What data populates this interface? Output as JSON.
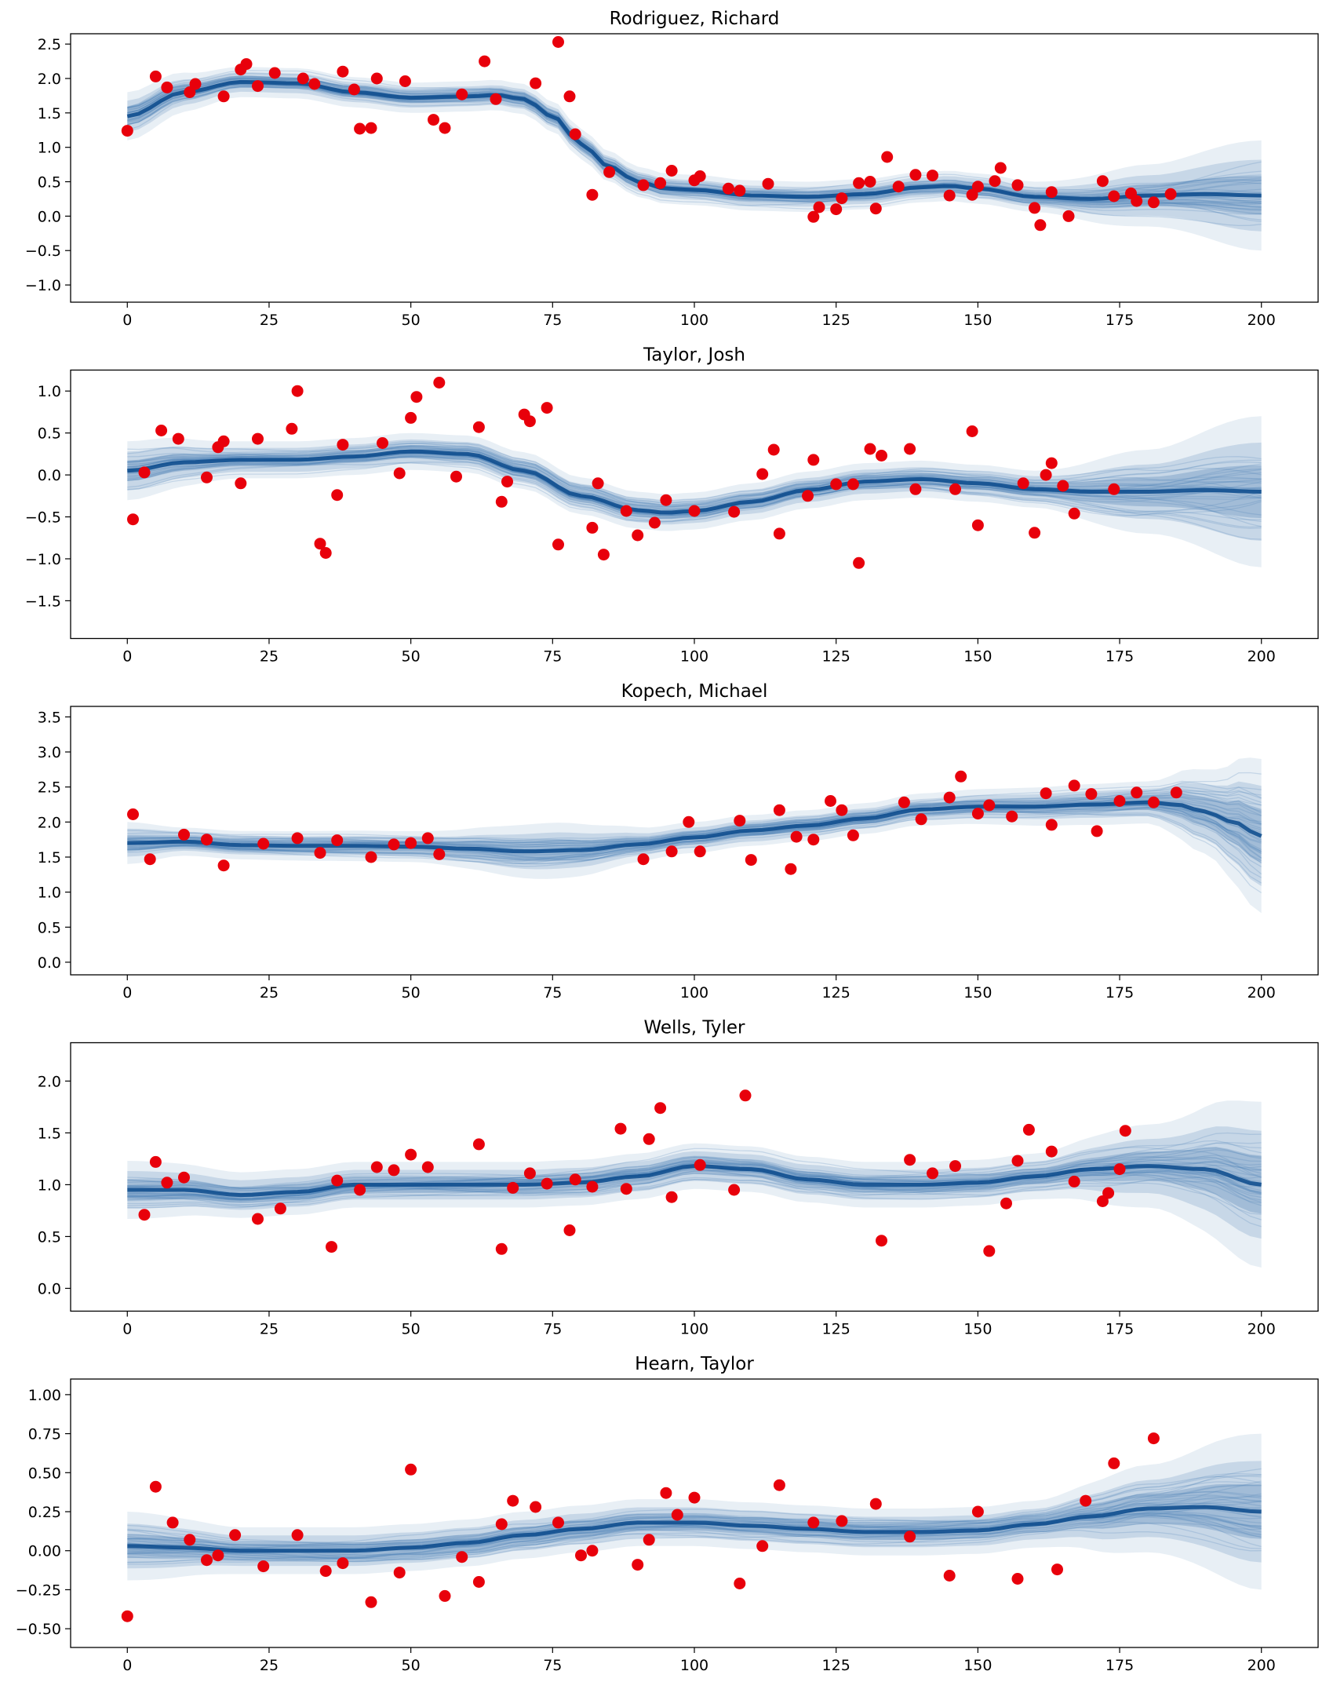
{
  "chart_data": [
    {
      "type": "scatter",
      "title": "Rodriguez, Richard",
      "xlabel": "",
      "ylabel": "",
      "xlim": [
        -10,
        210
      ],
      "ylim": [
        -1.25,
        2.65
      ],
      "xticks": [
        0,
        25,
        50,
        75,
        100,
        125,
        150,
        175,
        200
      ],
      "yticks": [
        -1.0,
        -0.5,
        0.0,
        0.5,
        1.0,
        1.5,
        2.0,
        2.5
      ],
      "ytick_decimals": 1,
      "grid": false,
      "point_color": "#e8000b",
      "band_color": "#1f5fa0",
      "points": {
        "x": [
          0,
          5,
          7,
          11,
          12,
          17,
          20,
          21,
          23,
          26,
          31,
          33,
          38,
          40,
          41,
          43,
          44,
          49,
          54,
          56,
          59,
          63,
          65,
          72,
          76,
          78,
          79,
          82,
          85,
          91,
          94,
          96,
          100,
          101,
          106,
          108,
          113,
          121,
          122,
          125,
          126,
          129,
          131,
          132,
          134,
          136,
          139,
          142,
          145,
          149,
          150,
          153,
          154,
          157,
          160,
          161,
          163,
          166,
          172,
          174,
          177,
          178,
          181,
          184
        ],
        "y": [
          1.24,
          2.03,
          1.87,
          1.8,
          1.92,
          1.74,
          2.13,
          2.21,
          1.89,
          2.08,
          2.0,
          1.92,
          2.1,
          1.84,
          1.27,
          1.28,
          2.0,
          1.96,
          1.4,
          1.28,
          1.77,
          2.25,
          1.7,
          1.93,
          2.53,
          1.74,
          1.19,
          0.31,
          0.64,
          0.45,
          0.48,
          0.66,
          0.52,
          0.58,
          0.4,
          0.37,
          0.47,
          -0.01,
          0.13,
          0.1,
          0.26,
          0.48,
          0.5,
          0.11,
          0.86,
          0.43,
          0.6,
          0.59,
          0.3,
          0.31,
          0.43,
          0.51,
          0.7,
          0.45,
          0.12,
          -0.13,
          0.35,
          0.0,
          0.51,
          0.29,
          0.33,
          0.22,
          0.2,
          0.32
        ]
      },
      "mean_curve": {
        "x": [
          0,
          10,
          20,
          30,
          40,
          50,
          60,
          65,
          70,
          75,
          80,
          85,
          90,
          95,
          100,
          110,
          120,
          130,
          140,
          145,
          150,
          160,
          170,
          180,
          190,
          200
        ],
        "y": [
          1.45,
          1.8,
          1.95,
          1.93,
          1.8,
          1.72,
          1.74,
          1.76,
          1.7,
          1.45,
          1.05,
          0.72,
          0.5,
          0.4,
          0.38,
          0.3,
          0.28,
          0.32,
          0.42,
          0.44,
          0.4,
          0.28,
          0.25,
          0.3,
          0.32,
          0.3
        ]
      },
      "band_halfwidth": {
        "x": [
          0,
          20,
          160,
          180,
          200
        ],
        "h": [
          0.35,
          0.22,
          0.22,
          0.45,
          0.8
        ]
      }
    },
    {
      "type": "scatter",
      "title": "Taylor, Josh",
      "xlabel": "",
      "ylabel": "",
      "xlim": [
        -10,
        210
      ],
      "ylim": [
        -1.95,
        1.25
      ],
      "xticks": [
        0,
        25,
        50,
        75,
        100,
        125,
        150,
        175,
        200
      ],
      "yticks": [
        -1.5,
        -1.0,
        -0.5,
        0.0,
        0.5,
        1.0
      ],
      "ytick_decimals": 1,
      "grid": false,
      "point_color": "#e8000b",
      "band_color": "#1f5fa0",
      "points": {
        "x": [
          1,
          3,
          6,
          9,
          14,
          16,
          17,
          20,
          23,
          29,
          30,
          34,
          35,
          37,
          38,
          45,
          48,
          50,
          51,
          55,
          58,
          62,
          66,
          67,
          70,
          71,
          74,
          76,
          83,
          84,
          82,
          88,
          90,
          93,
          95,
          100,
          107,
          112,
          114,
          115,
          120,
          121,
          125,
          128,
          129,
          131,
          133,
          138,
          139,
          146,
          149,
          150,
          158,
          160,
          162,
          163,
          165,
          167,
          174
        ],
        "y": [
          -0.53,
          0.03,
          0.53,
          0.43,
          -0.03,
          0.33,
          0.4,
          -0.1,
          0.43,
          0.55,
          1.0,
          -0.82,
          -0.93,
          -0.24,
          0.36,
          0.38,
          0.02,
          0.68,
          0.93,
          1.1,
          -0.02,
          0.57,
          -0.32,
          -0.08,
          0.72,
          0.64,
          0.8,
          -0.83,
          -0.1,
          -0.95,
          -0.63,
          -0.43,
          -0.72,
          -0.57,
          -0.3,
          -0.43,
          -0.44,
          0.01,
          0.3,
          -0.7,
          -0.25,
          0.18,
          -0.11,
          -0.11,
          -1.05,
          0.31,
          0.23,
          0.31,
          -0.17,
          -0.17,
          0.52,
          -0.6,
          -0.1,
          -0.69,
          0.0,
          0.14,
          -0.13,
          -0.46,
          -0.17
        ]
      },
      "mean_curve": {
        "x": [
          0,
          10,
          20,
          30,
          40,
          50,
          60,
          70,
          80,
          90,
          95,
          100,
          110,
          120,
          130,
          140,
          150,
          160,
          170,
          180,
          190,
          200
        ],
        "y": [
          0.05,
          0.15,
          0.18,
          0.18,
          0.22,
          0.28,
          0.25,
          0.05,
          -0.25,
          -0.42,
          -0.45,
          -0.43,
          -0.32,
          -0.18,
          -0.08,
          -0.05,
          -0.1,
          -0.17,
          -0.2,
          -0.2,
          -0.18,
          -0.2
        ]
      },
      "band_halfwidth": {
        "x": [
          0,
          20,
          160,
          180,
          200
        ],
        "h": [
          0.35,
          0.22,
          0.22,
          0.5,
          0.9
        ]
      }
    },
    {
      "type": "scatter",
      "title": "Kopech, Michael",
      "xlabel": "",
      "ylabel": "",
      "xlim": [
        -10,
        210
      ],
      "ylim": [
        -0.18,
        3.65
      ],
      "xticks": [
        0,
        25,
        50,
        75,
        100,
        125,
        150,
        175,
        200
      ],
      "yticks": [
        0.0,
        0.5,
        1.0,
        1.5,
        2.0,
        2.5,
        3.0,
        3.5
      ],
      "ytick_decimals": 1,
      "grid": false,
      "point_color": "#e8000b",
      "band_color": "#1f5fa0",
      "points": {
        "x": [
          1,
          4,
          10,
          14,
          17,
          24,
          30,
          34,
          37,
          43,
          47,
          50,
          53,
          55,
          91,
          96,
          99,
          101,
          108,
          110,
          115,
          117,
          118,
          121,
          124,
          126,
          128,
          137,
          140,
          145,
          147,
          150,
          152,
          156,
          162,
          163,
          167,
          170,
          171,
          175,
          178,
          181,
          185
        ],
        "y": [
          2.11,
          1.47,
          1.82,
          1.75,
          1.38,
          1.69,
          1.77,
          1.56,
          1.74,
          1.5,
          1.68,
          1.7,
          1.77,
          1.54,
          1.47,
          1.58,
          2.0,
          1.58,
          2.02,
          1.46,
          2.17,
          1.33,
          1.79,
          1.75,
          2.3,
          2.17,
          1.81,
          2.28,
          2.04,
          2.35,
          2.65,
          2.12,
          2.24,
          2.08,
          2.41,
          1.96,
          2.52,
          2.4,
          1.87,
          2.3,
          2.42,
          2.28,
          2.42
        ]
      },
      "mean_curve": {
        "x": [
          0,
          10,
          20,
          30,
          40,
          50,
          60,
          70,
          80,
          90,
          100,
          110,
          120,
          130,
          140,
          150,
          160,
          170,
          180,
          185,
          190,
          195,
          200
        ],
        "y": [
          1.7,
          1.72,
          1.67,
          1.66,
          1.66,
          1.65,
          1.62,
          1.58,
          1.6,
          1.68,
          1.78,
          1.88,
          1.95,
          2.05,
          2.18,
          2.22,
          2.22,
          2.25,
          2.28,
          2.25,
          2.15,
          2.0,
          1.8
        ]
      },
      "band_halfwidth": {
        "x": [
          0,
          10,
          50,
          75,
          95,
          130,
          180,
          190,
          200
        ],
        "h": [
          0.3,
          0.2,
          0.22,
          0.4,
          0.22,
          0.22,
          0.3,
          0.6,
          1.1
        ]
      }
    },
    {
      "type": "scatter",
      "title": "Wells, Tyler",
      "xlabel": "",
      "ylabel": "",
      "xlim": [
        -10,
        210
      ],
      "ylim": [
        -0.22,
        2.37
      ],
      "xticks": [
        0,
        25,
        50,
        75,
        100,
        125,
        150,
        175,
        200
      ],
      "yticks": [
        0.0,
        0.5,
        1.0,
        1.5,
        2.0
      ],
      "ytick_decimals": 1,
      "grid": false,
      "point_color": "#e8000b",
      "band_color": "#1f5fa0",
      "points": {
        "x": [
          3,
          5,
          7,
          10,
          23,
          27,
          36,
          37,
          41,
          44,
          47,
          50,
          53,
          62,
          66,
          68,
          71,
          74,
          78,
          79,
          82,
          87,
          88,
          92,
          94,
          96,
          101,
          107,
          109,
          133,
          138,
          142,
          146,
          152,
          155,
          157,
          159,
          163,
          167,
          172,
          173,
          175,
          176
        ],
        "y": [
          0.71,
          1.22,
          1.02,
          1.07,
          0.67,
          0.77,
          0.4,
          1.04,
          0.95,
          1.17,
          1.14,
          1.29,
          1.17,
          1.39,
          0.38,
          0.97,
          1.11,
          1.01,
          0.56,
          1.05,
          0.98,
          1.54,
          0.96,
          1.44,
          1.74,
          0.88,
          1.19,
          0.95,
          1.86,
          0.46,
          1.24,
          1.11,
          1.18,
          0.36,
          0.82,
          1.23,
          1.53,
          1.32,
          1.03,
          0.84,
          0.92,
          1.15,
          1.52
        ]
      },
      "mean_curve": {
        "x": [
          0,
          10,
          20,
          30,
          40,
          50,
          60,
          70,
          80,
          90,
          100,
          110,
          120,
          130,
          140,
          150,
          160,
          170,
          180,
          190,
          200
        ],
        "y": [
          0.95,
          0.95,
          0.9,
          0.93,
          1.0,
          1.0,
          1.0,
          1.0,
          1.02,
          1.08,
          1.18,
          1.15,
          1.05,
          1.0,
          1.0,
          1.02,
          1.08,
          1.15,
          1.18,
          1.15,
          1.0
        ]
      },
      "band_halfwidth": {
        "x": [
          0,
          20,
          160,
          180,
          200
        ],
        "h": [
          0.28,
          0.22,
          0.22,
          0.4,
          0.8
        ]
      }
    },
    {
      "type": "scatter",
      "title": "Hearn, Taylor",
      "xlabel": "",
      "ylabel": "",
      "xlim": [
        -10,
        210
      ],
      "ylim": [
        -0.62,
        1.1
      ],
      "xticks": [
        0,
        25,
        50,
        75,
        100,
        125,
        150,
        175,
        200
      ],
      "yticks": [
        -0.5,
        -0.25,
        0.0,
        0.25,
        0.5,
        0.75,
        1.0
      ],
      "ytick_decimals": 2,
      "grid": false,
      "point_color": "#e8000b",
      "band_color": "#1f5fa0",
      "points": {
        "x": [
          0,
          5,
          8,
          11,
          14,
          16,
          19,
          24,
          30,
          35,
          38,
          43,
          48,
          50,
          56,
          59,
          62,
          66,
          68,
          72,
          76,
          80,
          82,
          90,
          92,
          95,
          97,
          100,
          108,
          112,
          115,
          121,
          126,
          132,
          138,
          145,
          150,
          157,
          164,
          169,
          174,
          181
        ],
        "y": [
          -0.42,
          0.41,
          0.18,
          0.07,
          -0.06,
          -0.03,
          0.1,
          -0.1,
          0.1,
          -0.13,
          -0.08,
          -0.33,
          -0.14,
          0.52,
          -0.29,
          -0.04,
          -0.2,
          0.17,
          0.32,
          0.28,
          0.18,
          -0.03,
          0.0,
          -0.09,
          0.07,
          0.37,
          0.23,
          0.34,
          -0.21,
          0.03,
          0.42,
          0.18,
          0.19,
          0.3,
          0.09,
          -0.16,
          0.25,
          -0.18,
          -0.12,
          0.32,
          0.56,
          0.72
        ]
      },
      "mean_curve": {
        "x": [
          0,
          10,
          20,
          30,
          40,
          50,
          60,
          70,
          80,
          90,
          100,
          110,
          120,
          130,
          140,
          150,
          160,
          170,
          180,
          190,
          200
        ],
        "y": [
          0.03,
          0.02,
          0.0,
          0.0,
          0.0,
          0.02,
          0.05,
          0.1,
          0.14,
          0.18,
          0.18,
          0.16,
          0.14,
          0.12,
          0.12,
          0.13,
          0.17,
          0.22,
          0.27,
          0.28,
          0.25
        ]
      },
      "band_halfwidth": {
        "x": [
          0,
          20,
          160,
          180,
          200
        ],
        "h": [
          0.22,
          0.15,
          0.15,
          0.28,
          0.5
        ]
      }
    }
  ]
}
